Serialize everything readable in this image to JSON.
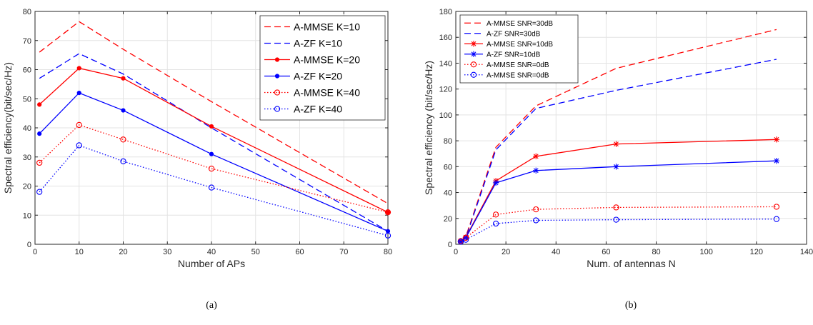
{
  "chart_data": [
    {
      "type": "line",
      "caption": "(a)",
      "xlabel": "Number of APs",
      "ylabel": "Spectral efficiency(bit/sec/Hz)",
      "xlim": [
        0,
        80
      ],
      "ylim": [
        0,
        80
      ],
      "xticks": [
        "0",
        "10",
        "20",
        "30",
        "40",
        "50",
        "60",
        "70",
        "80"
      ],
      "yticks": [
        "0",
        "10",
        "20",
        "30",
        "40",
        "50",
        "60",
        "70",
        "80"
      ],
      "grid": true,
      "legend_position": "top-right",
      "x": [
        1,
        10,
        20,
        40,
        80
      ],
      "series": [
        {
          "name": "A-MMSE K=10",
          "values": [
            66,
            76.5,
            67,
            49,
            14
          ],
          "color": "#ff0000",
          "style": "dashed",
          "marker": "none"
        },
        {
          "name": "A-ZF K=10",
          "values": [
            57,
            65.5,
            58.5,
            40,
            4.5
          ],
          "color": "#0000ff",
          "style": "dashed",
          "marker": "none"
        },
        {
          "name": "A-MMSE K=20",
          "values": [
            48,
            60.5,
            57,
            40.5,
            11
          ],
          "color": "#ff0000",
          "style": "solid",
          "marker": "dot"
        },
        {
          "name": "A-ZF K=20",
          "values": [
            38,
            52,
            46,
            31,
            4.5
          ],
          "color": "#0000ff",
          "style": "solid",
          "marker": "dot"
        },
        {
          "name": "A-MMSE K=40",
          "values": [
            28,
            41,
            36,
            26,
            11
          ],
          "color": "#ff0000",
          "style": "dotted",
          "marker": "circle"
        },
        {
          "name": "A-ZF K=40",
          "values": [
            18,
            34,
            28.5,
            19.5,
            3
          ],
          "color": "#0000ff",
          "style": "dotted",
          "marker": "circle"
        }
      ]
    },
    {
      "type": "line",
      "caption": "(b)",
      "xlabel": "Num. of antennas N",
      "ylabel": "Spectral efficiency (bit/sec/Hz)",
      "xlim": [
        0,
        140
      ],
      "ylim": [
        0,
        180
      ],
      "xticks": [
        "0",
        "20",
        "40",
        "60",
        "80",
        "100",
        "120",
        "140"
      ],
      "yticks": [
        "0",
        "20",
        "40",
        "60",
        "80",
        "100",
        "120",
        "140",
        "160",
        "180"
      ],
      "grid": true,
      "legend_position": "top-left",
      "x": [
        2,
        4,
        16,
        32,
        64,
        128
      ],
      "series": [
        {
          "name": "A-MMSE SNR=30dB",
          "values": [
            2.5,
            6,
            75,
            107,
            136,
            166
          ],
          "color": "#ff0000",
          "style": "dashed",
          "marker": "none"
        },
        {
          "name": "A-ZF SNR=30dB",
          "values": [
            2,
            5,
            73,
            105,
            119,
            143
          ],
          "color": "#0000ff",
          "style": "dashed",
          "marker": "none"
        },
        {
          "name": "A-MMSE SNR=10dB",
          "values": [
            2.5,
            5.5,
            49,
            68,
            77.5,
            81
          ],
          "color": "#ff0000",
          "style": "solid",
          "marker": "star"
        },
        {
          "name": "A-ZF SNR=10dB",
          "values": [
            2,
            5,
            47.5,
            57,
            60,
            64.5
          ],
          "color": "#0000ff",
          "style": "solid",
          "marker": "star"
        },
        {
          "name": "A-MMSE SNR=0dB",
          "values": [
            2.5,
            5,
            23,
            27,
            28.5,
            29
          ],
          "color": "#ff0000",
          "style": "dotted",
          "marker": "circle"
        },
        {
          "name": "A-MMSE SNR=0dB",
          "values": [
            2,
            3.5,
            16,
            18.5,
            19,
            19.5
          ],
          "color": "#0000ff",
          "style": "dotted",
          "marker": "circle"
        }
      ]
    }
  ]
}
